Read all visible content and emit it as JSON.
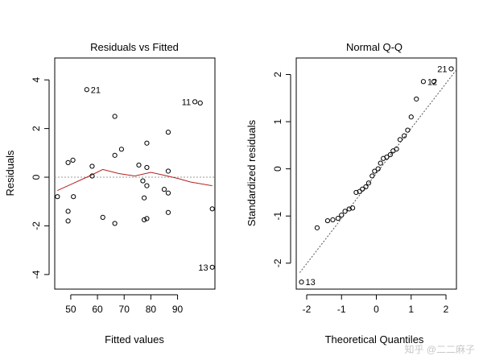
{
  "chart_data": [
    {
      "type": "scatter",
      "title": "Residuals vs Fitted",
      "xlabel": "Fitted values",
      "ylabel": "Residuals",
      "xlim": [
        44,
        104
      ],
      "ylim": [
        -4.6,
        4.9
      ],
      "xticks": [
        50,
        60,
        70,
        80,
        90
      ],
      "yticks": [
        -4,
        -2,
        0,
        2,
        4
      ],
      "reference_line": 0,
      "points": [
        {
          "x": 45.0,
          "y": -0.8
        },
        {
          "x": 49.0,
          "y": -1.4
        },
        {
          "x": 49.0,
          "y": -1.8
        },
        {
          "x": 49.0,
          "y": 0.6
        },
        {
          "x": 50.8,
          "y": 0.7
        },
        {
          "x": 51.0,
          "y": -0.8
        },
        {
          "x": 56.0,
          "y": 3.6,
          "label": "21"
        },
        {
          "x": 58.0,
          "y": 0.45
        },
        {
          "x": 58.0,
          "y": 0.05
        },
        {
          "x": 62.0,
          "y": -1.65
        },
        {
          "x": 66.5,
          "y": 2.5
        },
        {
          "x": 66.5,
          "y": 0.9
        },
        {
          "x": 66.5,
          "y": -1.9
        },
        {
          "x": 69.0,
          "y": 1.15
        },
        {
          "x": 75.5,
          "y": 0.5
        },
        {
          "x": 77.0,
          "y": -0.15
        },
        {
          "x": 77.5,
          "y": -0.85
        },
        {
          "x": 77.5,
          "y": -1.75
        },
        {
          "x": 78.5,
          "y": 1.4
        },
        {
          "x": 78.5,
          "y": 0.4
        },
        {
          "x": 78.5,
          "y": -0.35
        },
        {
          "x": 78.5,
          "y": -1.7
        },
        {
          "x": 85.0,
          "y": -0.5
        },
        {
          "x": 86.5,
          "y": 1.85
        },
        {
          "x": 86.5,
          "y": 0.25
        },
        {
          "x": 86.5,
          "y": -0.65
        },
        {
          "x": 86.5,
          "y": -1.45
        },
        {
          "x": 96.5,
          "y": 3.1,
          "label": "11"
        },
        {
          "x": 98.5,
          "y": 3.05
        },
        {
          "x": 103.0,
          "y": -1.3
        },
        {
          "x": 103.0,
          "y": -3.7,
          "label": "13"
        }
      ],
      "smooth_line": [
        {
          "x": 45.0,
          "y": -0.55
        },
        {
          "x": 50.0,
          "y": -0.3
        },
        {
          "x": 55.0,
          "y": -0.05
        },
        {
          "x": 58.0,
          "y": 0.1
        },
        {
          "x": 62.0,
          "y": 0.32
        },
        {
          "x": 68.0,
          "y": 0.15
        },
        {
          "x": 74.0,
          "y": 0.05
        },
        {
          "x": 80.0,
          "y": 0.2
        },
        {
          "x": 85.0,
          "y": 0.08
        },
        {
          "x": 90.0,
          "y": -0.05
        },
        {
          "x": 95.0,
          "y": -0.2
        },
        {
          "x": 103.0,
          "y": -0.35
        }
      ]
    },
    {
      "type": "scatter",
      "title": "Normal Q-Q",
      "xlabel": "Theoretical Quantiles",
      "ylabel": "Standardized residuals",
      "xlim": [
        -2.3,
        2.3
      ],
      "ylim": [
        -2.55,
        2.35
      ],
      "xticks": [
        -2,
        -1,
        0,
        1,
        2
      ],
      "yticks": [
        -2,
        -1,
        0,
        1,
        2
      ],
      "reference_line": {
        "from": [
          -2.2,
          -2.2
        ],
        "to": [
          2.3,
          2.1
        ]
      },
      "points": [
        {
          "x": -2.15,
          "y": -2.4,
          "label": "13"
        },
        {
          "x": -1.7,
          "y": -1.25
        },
        {
          "x": -1.4,
          "y": -1.1
        },
        {
          "x": -1.25,
          "y": -1.08
        },
        {
          "x": -1.1,
          "y": -1.05
        },
        {
          "x": -1.0,
          "y": -0.98
        },
        {
          "x": -0.9,
          "y": -0.9
        },
        {
          "x": -0.78,
          "y": -0.85
        },
        {
          "x": -0.68,
          "y": -0.83
        },
        {
          "x": -0.58,
          "y": -0.5
        },
        {
          "x": -0.48,
          "y": -0.48
        },
        {
          "x": -0.4,
          "y": -0.43
        },
        {
          "x": -0.3,
          "y": -0.38
        },
        {
          "x": -0.22,
          "y": -0.3
        },
        {
          "x": -0.12,
          "y": -0.15
        },
        {
          "x": -0.05,
          "y": -0.05
        },
        {
          "x": 0.05,
          "y": 0.0
        },
        {
          "x": 0.12,
          "y": 0.12
        },
        {
          "x": 0.2,
          "y": 0.22
        },
        {
          "x": 0.3,
          "y": 0.25
        },
        {
          "x": 0.4,
          "y": 0.3
        },
        {
          "x": 0.48,
          "y": 0.38
        },
        {
          "x": 0.58,
          "y": 0.42
        },
        {
          "x": 0.68,
          "y": 0.62
        },
        {
          "x": 0.8,
          "y": 0.7
        },
        {
          "x": 0.9,
          "y": 0.82
        },
        {
          "x": 1.0,
          "y": 1.1
        },
        {
          "x": 1.15,
          "y": 1.48
        },
        {
          "x": 1.35,
          "y": 1.85,
          "label": "12"
        },
        {
          "x": 1.65,
          "y": 1.85
        },
        {
          "x": 2.15,
          "y": 2.12,
          "label": "21"
        }
      ]
    }
  ],
  "watermark": "知乎 @二二麻子"
}
